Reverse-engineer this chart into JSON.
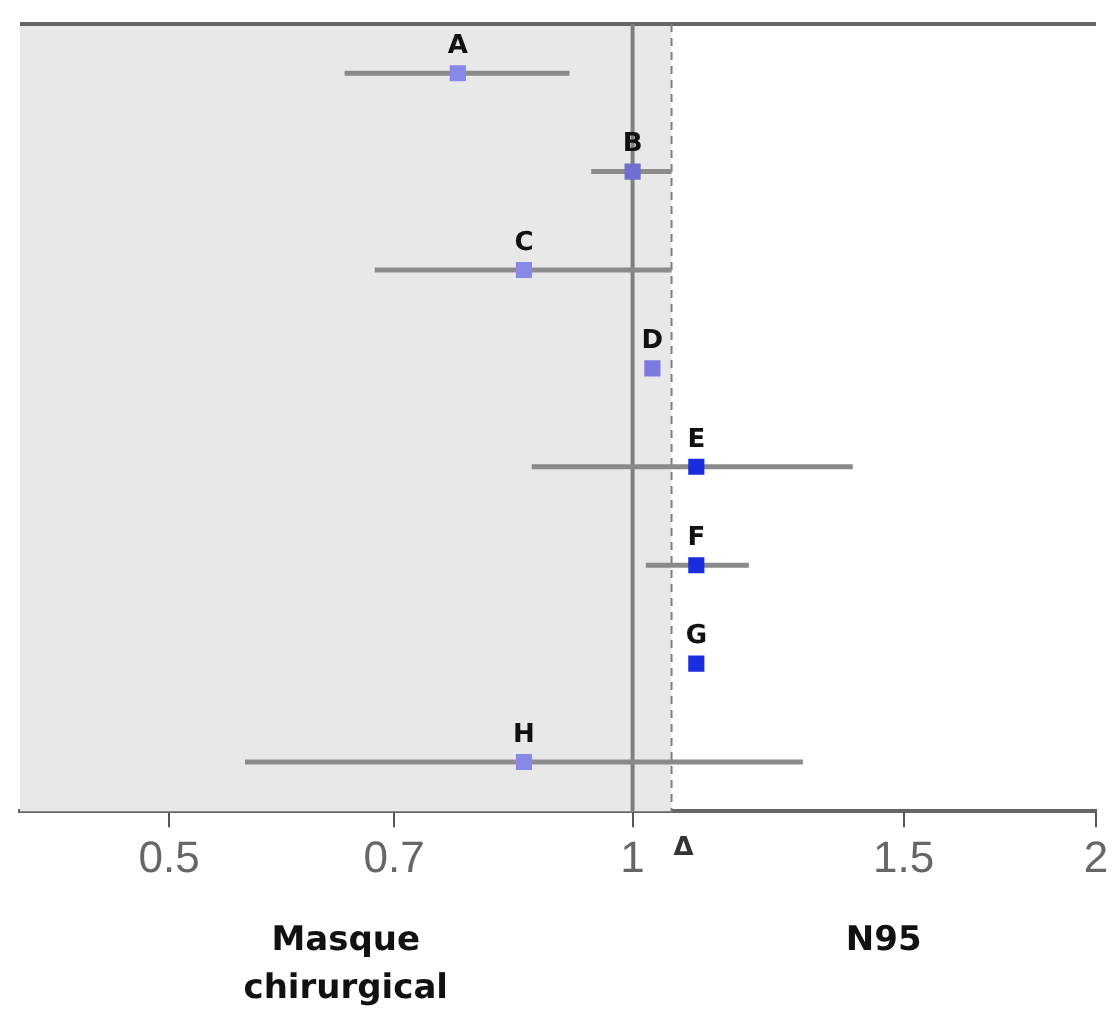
{
  "chart_data": {
    "type": "scatter",
    "orientation": "horizontal",
    "log": "x",
    "marker": "square",
    "grid": false,
    "tick_labels": "x",
    "data_labels": false,
    "categories": [
      "A",
      "B",
      "C",
      "D",
      "E",
      "F",
      "G",
      "H"
    ],
    "values": [
      0.77,
      1.0,
      0.85,
      1.03,
      1.1,
      1.1,
      1.1,
      0.85
    ],
    "errors": [
      [
        0.65,
        0.91
      ],
      [
        0.94,
        1.06
      ],
      [
        0.68,
        1.06
      ],
      null,
      [
        0.86,
        1.39
      ],
      [
        1.02,
        1.19
      ],
      null,
      [
        0.56,
        1.29
      ]
    ],
    "colors": [
      "#8888e8",
      "#6f6fd0",
      "#8888e8",
      "#7a7ae0",
      "#1a2ee0",
      "#1a2ee0",
      "#1a2ee0",
      "#8888e8"
    ],
    "xlim": [
      0.4,
      2
    ],
    "xticks": [
      0.5,
      0.7,
      1,
      1.5,
      2
    ],
    "ref_lines": [
      {
        "axis": "x",
        "value": 1,
        "color": "#808080"
      },
      {
        "axis": "x",
        "value": 1.06,
        "label": "Δ",
        "line_style": "dashed",
        "color": "#808080"
      }
    ],
    "bands": [
      {
        "axis": "x",
        "from": 0.4,
        "to": 1.06,
        "color": "#e8e8e8"
      }
    ],
    "annotations": [
      "Masque chirurgical",
      "N95"
    ]
  }
}
